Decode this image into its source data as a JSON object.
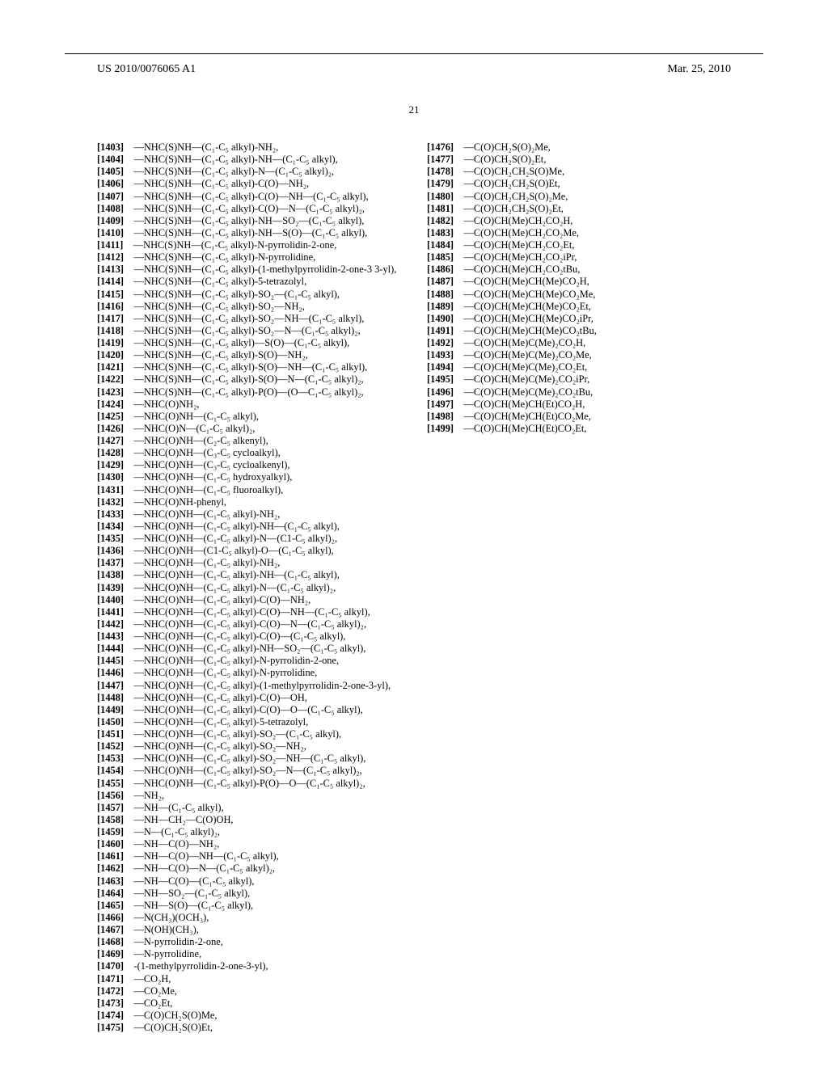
{
  "header": {
    "doc_id": "US 2010/0076065 A1",
    "date": "Mar. 25, 2010",
    "page_num": "21"
  },
  "list": [
    {
      "n": "1403",
      "t": "—NHC(S)NH—(C₁-C₅ alkyl)-NH₂,"
    },
    {
      "n": "1404",
      "t": "—NHC(S)NH—(C₁-C₅ alkyl)-NH—(C₁-C₅ alkyl),"
    },
    {
      "n": "1405",
      "t": "—NHC(S)NH—(C₁-C₅ alkyl)-N—(C₁-C₅ alkyl)₂,"
    },
    {
      "n": "1406",
      "t": "—NHC(S)NH—(C₁-C₅ alkyl)-C(O)—NH₂,"
    },
    {
      "n": "1407",
      "t": "—NHC(S)NH—(C₁-C₅ alkyl)-C(O)—NH—(C₁-C₅ alkyl),"
    },
    {
      "n": "1408",
      "t": "—NHC(S)NH—(C₁-C₅ alkyl)-C(O)—N—(C₁-C₅ alkyl)₂,"
    },
    {
      "n": "1409",
      "t": "—NHC(S)NH—(C₁-C₅ alkyl)-NH—SO₂—(C₁-C₅ alkyl),"
    },
    {
      "n": "1410",
      "t": "—NHC(S)NH—(C₁-C₅ alkyl)-NH—S(O)—(C₁-C₅ alkyl),"
    },
    {
      "n": "1411",
      "t": "—NHC(S)NH—(C₁-C₅ alkyl)-N-pyrrolidin-2-one,"
    },
    {
      "n": "1412",
      "t": "—NHC(S)NH—(C₁-C₅ alkyl)-N-pyrrolidine,"
    },
    {
      "n": "1413",
      "t": "—NHC(S)NH—(C₁-C₅ alkyl)-(1-methylpyrrolidin-2-one-3 3-yl),"
    },
    {
      "n": "1414",
      "t": "—NHC(S)NH—(C₁-C₅ alkyl)-5-tetrazolyl,"
    },
    {
      "n": "1415",
      "t": "—NHC(S)NH—(C₁-C₅ alkyl)-SO₂—(C₁-C₅ alkyl),"
    },
    {
      "n": "1416",
      "t": "—NHC(S)NH—(C₁-C₅ alkyl)-SO₂—NH₂,"
    },
    {
      "n": "1417",
      "t": "—NHC(S)NH—(C₁-C₅ alkyl)-SO₂—NH—(C₁-C₅ alkyl),"
    },
    {
      "n": "1418",
      "t": "—NHC(S)NH—(C₁-C₅ alkyl)-SO₂—N—(C₁-C₅ alkyl)₂,"
    },
    {
      "n": "1419",
      "t": "—NHC(S)NH—(C₁-C₅ alkyl)—S(O)—(C₁-C₅ alkyl),"
    },
    {
      "n": "1420",
      "t": "—NHC(S)NH—(C₁-C₅ alkyl)-S(O)—NH₂,"
    },
    {
      "n": "1421",
      "t": "—NHC(S)NH—(C₁-C₅ alkyl)-S(O)—NH—(C₁-C₅ alkyl),"
    },
    {
      "n": "1422",
      "t": "—NHC(S)NH—(C₁-C₅ alkyl)-S(O)—N—(C₁-C₅ alkyl)₂,"
    },
    {
      "n": "1423",
      "t": "—NHC(S)NH—(C₁-C₅ alkyl)-P(O)—(O—C₁-C₅ alkyl)₂,"
    },
    {
      "n": "1424",
      "t": "—NHC(O)NH₂,"
    },
    {
      "n": "1425",
      "t": "—NHC(O)NH—(C₁-C₅ alkyl),"
    },
    {
      "n": "1426",
      "t": "—NHC(O)N—(C₁-C₅ alkyl)₂,"
    },
    {
      "n": "1427",
      "t": "—NHC(O)NH—(C₂-C₅ alkenyl),"
    },
    {
      "n": "1428",
      "t": "—NHC(O)NH—(C₃-C₅ cycloalkyl),"
    },
    {
      "n": "1429",
      "t": "—NHC(O)NH—(C₃-C₅ cycloalkenyl),"
    },
    {
      "n": "1430",
      "t": "—NHC(O)NH—(C₁-C₅ hydroxyalkyl),"
    },
    {
      "n": "1431",
      "t": "—NHC(O)NH—(C₁-C₅ fluoroalkyl),"
    },
    {
      "n": "1432",
      "t": "—NHC(O)NH-phenyl,"
    },
    {
      "n": "1433",
      "t": "—NHC(O)NH—(C₁-C₅ alkyl)-NH₂,"
    },
    {
      "n": "1434",
      "t": "—NHC(O)NH—(C₁-C₅ alkyl)-NH—(C₁-C₅ alkyl),"
    },
    {
      "n": "1435",
      "t": "—NHC(O)NH—(C₁-C₅ alkyl)-N—(C1-C₅ alkyl)₂,"
    },
    {
      "n": "1436",
      "t": "—NHC(O)NH—(C1-C₅ alkyl)-O—(C₁-C₅ alkyl),"
    },
    {
      "n": "1437",
      "t": "—NHC(O)NH—(C₁-C₅ alkyl)-NH₂,"
    },
    {
      "n": "1438",
      "t": "—NHC(O)NH—(C₁-C₅ alkyl)-NH—(C₁-C₅ alkyl),"
    },
    {
      "n": "1439",
      "t": "—NHC(O)NH—(C₁-C₅ alkyl)-N—(C₁-C₅ alkyl)₂,"
    },
    {
      "n": "1440",
      "t": "—NHC(O)NH—(C₁-C₅ alkyl)-C(O)—NH₂,"
    },
    {
      "n": "1441",
      "t": "—NHC(O)NH—(C₁-C₅ alkyl)-C(O)—NH—(C₁-C₅ alkyl),"
    },
    {
      "n": "1442",
      "t": "—NHC(O)NH—(C₁-C₅ alkyl)-C(O)—N—(C₁-C₅ alkyl)₂,"
    },
    {
      "n": "1443",
      "t": "—NHC(O)NH—(C₁-C₅ alkyl)-C(O)—(C₁-C₅ alkyl),"
    },
    {
      "n": "1444",
      "t": "—NHC(O)NH—(C₁-C₅ alkyl)-NH—SO₂—(C₁-C₅ alkyl),"
    },
    {
      "n": "1445",
      "t": "—NHC(O)NH—(C₁-C₅ alkyl)-N-pyrrolidin-2-one,"
    },
    {
      "n": "1446",
      "t": "—NHC(O)NH—(C₁-C₅ alkyl)-N-pyrrolidine,"
    },
    {
      "n": "1447",
      "t": "—NHC(O)NH—(C₁-C₅ alkyl)-(1-methylpyrrolidin-2-one-3-yl),"
    },
    {
      "n": "1448",
      "t": "—NHC(O)NH—(C₁-C₅ alkyl)-C(O)—OH,"
    },
    {
      "n": "1449",
      "t": "—NHC(O)NH—(C₁-C₅ alkyl)-C(O)—O—(C₁-C₅ alkyl),"
    },
    {
      "n": "1450",
      "t": "—NHC(O)NH—(C₁-C₅ alkyl)-5-tetrazolyl,"
    },
    {
      "n": "1451",
      "t": "—NHC(O)NH—(C₁-C₅ alkyl)-SO₂—(C₁-C₅ alkyl),"
    },
    {
      "n": "1452",
      "t": "—NHC(O)NH—(C₁-C₅ alkyl)-SO₂—NH₂,"
    },
    {
      "n": "1453",
      "t": "—NHC(O)NH—(C₁-C₅ alkyl)-SO₂—NH—(C₁-C₅ alkyl),"
    },
    {
      "n": "1454",
      "t": "—NHC(O)NH—(C₁-C₅ alkyl)-SO₂—N—(C₁-C₅ alkyl)₂,"
    },
    {
      "n": "1455",
      "t": "—NHC(O)NH—(C₁-C₅ alkyl)-P(O)—O—(C₁-C₅ alkyl)₂,"
    },
    {
      "n": "1456",
      "t": "—NH₂,"
    },
    {
      "n": "1457",
      "t": "—NH—(C₁-C₅ alkyl),"
    },
    {
      "n": "1458",
      "t": "—NH—CH₂—C(O)OH,"
    },
    {
      "n": "1459",
      "t": "—N—(C₁-C₅ alkyl)₂,"
    },
    {
      "n": "1460",
      "t": "—NH—C(O)—NH₂,"
    },
    {
      "n": "1461",
      "t": "—NH—C(O)—NH—(C₁-C₅ alkyl),"
    },
    {
      "n": "1462",
      "t": "—NH—C(O)—N—(C₁-C₅ alkyl)₂,"
    },
    {
      "n": "1463",
      "t": "—NH—C(O)—(C₁-C₅ alkyl),"
    },
    {
      "n": "1464",
      "t": "—NH—SO₂—(C₁-C₅ alkyl),"
    },
    {
      "n": "1465",
      "t": "—NH—S(O)—(C₁-C₅ alkyl),"
    },
    {
      "n": "1466",
      "t": "—N(CH₃)(OCH₃),"
    },
    {
      "n": "1467",
      "t": "—N(OH)(CH₃),"
    },
    {
      "n": "1468",
      "t": "—N-pyrrolidin-2-one,"
    },
    {
      "n": "1469",
      "t": "—N-pyrrolidine,"
    },
    {
      "n": "1470",
      "t": "-(1-methylpyrrolidin-2-one-3-yl),"
    },
    {
      "n": "1471",
      "t": "—CO₂H,"
    },
    {
      "n": "1472",
      "t": "—CO₂Me,"
    },
    {
      "n": "1473",
      "t": "—CO₂Et,"
    },
    {
      "n": "1474",
      "t": "—C(O)CH₂S(O)Me,"
    },
    {
      "n": "1475",
      "t": "—C(O)CH₂S(O)Et,"
    },
    {
      "n": "1476",
      "t": "—C(O)CH₂S(O)₂Me,"
    },
    {
      "n": "1477",
      "t": "—C(O)CH₂S(O)₂Et,"
    },
    {
      "n": "1478",
      "t": "—C(O)CH₂CH₂S(O)Me,"
    },
    {
      "n": "1479",
      "t": "—C(O)CH₂CH₂S(O)Et,"
    },
    {
      "n": "1480",
      "t": "—C(O)CH₂CH₂S(O)₂Me,"
    },
    {
      "n": "1481",
      "t": "—C(O)CH₂CH₂S(O)₂Et,"
    },
    {
      "n": "1482",
      "t": "—C(O)CH(Me)CH₂CO₂H,"
    },
    {
      "n": "1483",
      "t": "—C(O)CH(Me)CH₂CO₂Me,"
    },
    {
      "n": "1484",
      "t": "—C(O)CH(Me)CH₂CO₂Et,"
    },
    {
      "n": "1485",
      "t": "—C(O)CH(Me)CH₂CO₂iPr,"
    },
    {
      "n": "1486",
      "t": "—C(O)CH(Me)CH₂CO₂tBu,"
    },
    {
      "n": "1487",
      "t": "—C(O)CH(Me)CH(Me)CO₂H,"
    },
    {
      "n": "1488",
      "t": "—C(O)CH(Me)CH(Me)CO₂Me,"
    },
    {
      "n": "1489",
      "t": "—C(O)CH(Me)CH(Me)CO₂Et,"
    },
    {
      "n": "1490",
      "t": "—C(O)CH(Me)CH(Me)CO₂iPr,"
    },
    {
      "n": "1491",
      "t": "—C(O)CH(Me)CH(Me)CO₂tBu,"
    },
    {
      "n": "1492",
      "t": "—C(O)CH(Me)C(Me)₂CO₂H,"
    },
    {
      "n": "1493",
      "t": "—C(O)CH(Me)C(Me)₂CO₂Me,"
    },
    {
      "n": "1494",
      "t": "—C(O)CH(Me)C(Me)₂CO₂Et,"
    },
    {
      "n": "1495",
      "t": "—C(O)CH(Me)C(Me)₂CO₂iPr,"
    },
    {
      "n": "1496",
      "t": "—C(O)CH(Me)C(Me)₂CO₂tBu,"
    },
    {
      "n": "1497",
      "t": "—C(O)CH(Me)CH(Et)CO₂H,"
    },
    {
      "n": "1498",
      "t": "—C(O)CH(Me)CH(Et)CO₂Me,"
    },
    {
      "n": "1499",
      "t": "—C(O)CH(Me)CH(Et)CO₂Et,"
    }
  ]
}
